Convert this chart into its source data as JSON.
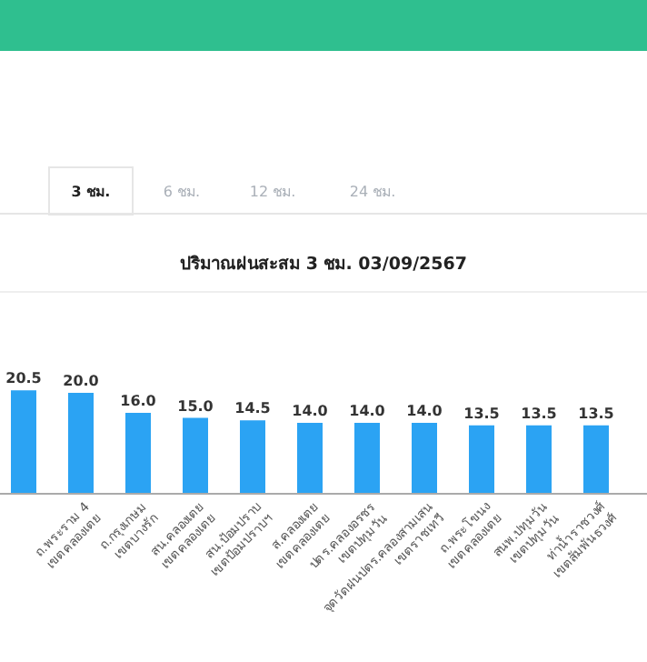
{
  "chart_data": {
    "type": "bar",
    "title": "ปริมาณฝนสะสม 3 ชม. 03/09/2567",
    "annotations": [
      "3 ชม.",
      "6 ชม.",
      "12 ชม.",
      "24 ชม."
    ],
    "categories": [
      null,
      "ถ.พระราม 4\nเขตคลองเตย",
      "ถ.กรุงเกษม\nเขตบางรัก",
      "สน.คลองเตย\nเขตคลองเตย",
      "สน.ป้อมปราบ\nเขตป้อมปราบฯ",
      "ส.คลองเตย\nเขตคลองเตย",
      "ปตร.คลองอรชร\nเขตปทุมวัน",
      "จุดวัดฝนปตร.คลองสามเสน\nเขตราชเทวี",
      "ถ.พระโขนง\nเขตคลองเตย",
      "สนพ.ปทุมวัน\nเขตปทุมวัน",
      "ท่าน้ำราชวงศ์\nเขตสัมพันธวงศ์"
    ],
    "values": [
      20.5,
      20.0,
      16.0,
      15.0,
      14.5,
      14.0,
      14.0,
      14.0,
      13.5,
      13.5,
      13.5
    ],
    "color": "#2ba3f3",
    "value_labels": [
      "20.5",
      "20.0",
      "16.0",
      "15.0",
      "14.5",
      "14.0",
      "14.0",
      "14.0",
      "13.5",
      "13.5",
      "13.5"
    ],
    "tick_labels": "x"
  }
}
